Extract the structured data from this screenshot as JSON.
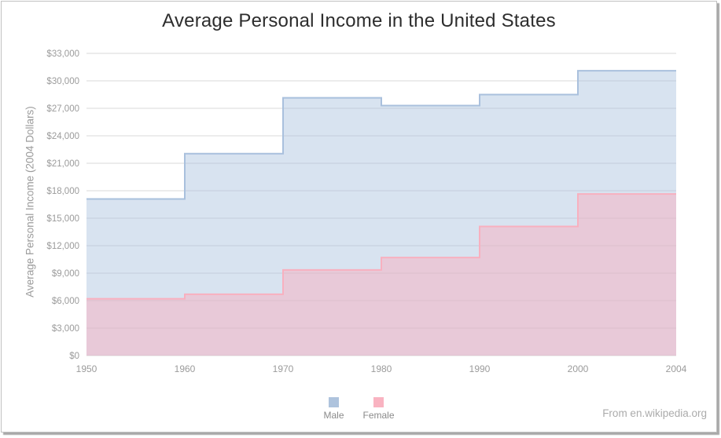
{
  "footer": {
    "text": "From en.wikipedia.org"
  },
  "colors": {
    "card_border": "#c1c1c1",
    "card_shadow": "#a8a8a8",
    "title_text": "#2d2d2d",
    "axis_tick_text": "#9b9b9b",
    "gridline": "#d9d9d9",
    "footer_text": "#ababab",
    "legend_label_text": "#8a8a8a"
  },
  "chart_data": {
    "type": "area",
    "subtype": "step-after",
    "title": "Average Personal Income in the United States",
    "xlabel": "",
    "ylabel": "Average Personal Income (2004 Dollars)",
    "x_tick_labels": [
      "1950",
      "1960",
      "1970",
      "1980",
      "1990",
      "2000",
      "2004"
    ],
    "note_values_span": "each value holds from its x tick to the next x tick (step chart)",
    "ylim": [
      0,
      33000
    ],
    "y_tick_step": 3000,
    "y_tick_prefix": "$",
    "grid": true,
    "legend_position": "bottom-center",
    "series": [
      {
        "name": "Male",
        "values": [
          17100,
          22050,
          28150,
          27300,
          28500,
          31100
        ],
        "fill": "rgba(169,192,221,0.45)",
        "stroke": "#a9c0dd",
        "legend_swatch": "#aec3dd"
      },
      {
        "name": "Female",
        "values": [
          6200,
          6700,
          9350,
          10700,
          14100,
          17650
        ],
        "fill": "rgba(248,176,191,0.5)",
        "stroke": "#f8b0bf",
        "legend_swatch": "#f9b3c1"
      }
    ]
  }
}
